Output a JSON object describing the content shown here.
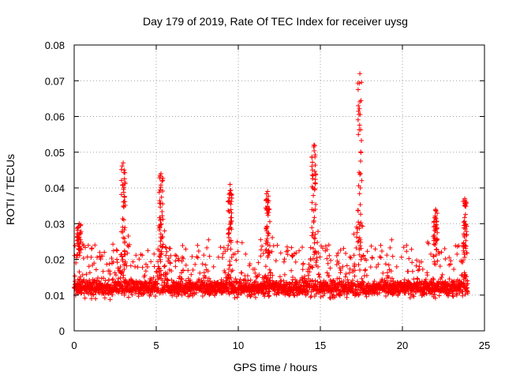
{
  "chart_data": {
    "type": "scatter",
    "title": "Day 179 of 2019, Rate Of TEC Index for receiver uysg",
    "xlabel": "GPS time / hours",
    "ylabel": "ROTI / TECUs",
    "xlim": [
      0,
      25
    ],
    "ylim": [
      0,
      0.08
    ],
    "xticks": [
      0,
      5,
      10,
      15,
      20,
      25
    ],
    "xtick_labels": [
      "0",
      "5",
      "10",
      "15",
      "20",
      "25"
    ],
    "yticks": [
      0,
      0.01,
      0.02,
      0.03,
      0.04,
      0.05,
      0.06,
      0.07,
      0.08
    ],
    "ytick_labels": [
      "0",
      "0.01",
      "0.02",
      "0.03",
      "0.04",
      "0.05",
      "0.06",
      "0.07",
      "0.08"
    ],
    "grid": true,
    "marker": "+",
    "series": [
      {
        "name": "ROTI",
        "color": "#ff0000",
        "x_range": [
          0,
          24
        ],
        "baseline_median": 0.012,
        "typical_band": [
          0.005,
          0.028
        ],
        "peaks": [
          {
            "x": 0.3,
            "max": 0.03
          },
          {
            "x": 3.0,
            "max": 0.047
          },
          {
            "x": 5.3,
            "max": 0.044
          },
          {
            "x": 9.5,
            "max": 0.041
          },
          {
            "x": 11.8,
            "max": 0.039
          },
          {
            "x": 14.6,
            "max": 0.052
          },
          {
            "x": 17.4,
            "max": 0.072
          },
          {
            "x": 22.0,
            "max": 0.034
          },
          {
            "x": 23.8,
            "max": 0.037
          }
        ]
      }
    ]
  }
}
